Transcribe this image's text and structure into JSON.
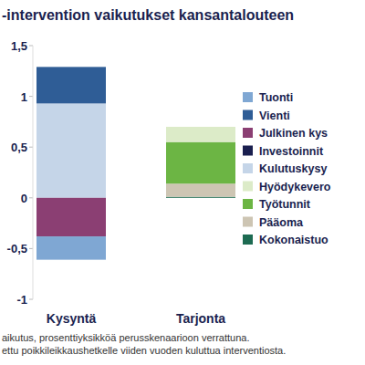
{
  "chart_data": {
    "type": "bar",
    "stacked": true,
    "grid": false,
    "legend": "right",
    "title": "-intervention vaikutukset kansantalouteen",
    "annotations": [
      "aikutus, prosenttiyksikköä perusskenaarioon verrattuna.",
      "ettu poikkileikkaushetkelle viiden vuoden kuluttua interventiosta."
    ],
    "categories": [
      "Kysyntä",
      "Tarjonta"
    ],
    "ylim": [
      -1,
      1.5
    ],
    "yticks": [
      {
        "value": 1.5,
        "label": "1,5"
      },
      1,
      {
        "value": 0.5,
        "label": "0,5"
      },
      0,
      {
        "value": -0.5,
        "label": "-0,5"
      },
      -1
    ],
    "series": [
      {
        "name": "Tuonti",
        "color": "#7fa7d3",
        "values": [
          -0.23,
          null
        ]
      },
      {
        "name": "Vienti",
        "color": "#2f5d96",
        "values": [
          0.36,
          null
        ]
      },
      {
        "name": "Julkinen kys",
        "color": "#8b3f73",
        "values": [
          -0.38,
          null
        ]
      },
      {
        "name": "Investoinnit",
        "color": "#1a1f4f",
        "values": [
          0,
          null
        ]
      },
      {
        "name": "Kulutuskysy",
        "color": "#c5d5e8",
        "values": [
          0.93,
          null
        ]
      },
      {
        "name": "Hyödykevero",
        "color": "#dcebc8",
        "values": [
          null,
          0.15
        ]
      },
      {
        "name": "Työtunnit",
        "color": "#6cb544",
        "values": [
          null,
          0.41
        ]
      },
      {
        "name": "Pääoma",
        "color": "#cdc5b3",
        "values": [
          null,
          0.13
        ]
      },
      {
        "name": "Kokonaistuo",
        "color": "#1d6b52",
        "values": [
          null,
          0.01
        ]
      }
    ]
  }
}
